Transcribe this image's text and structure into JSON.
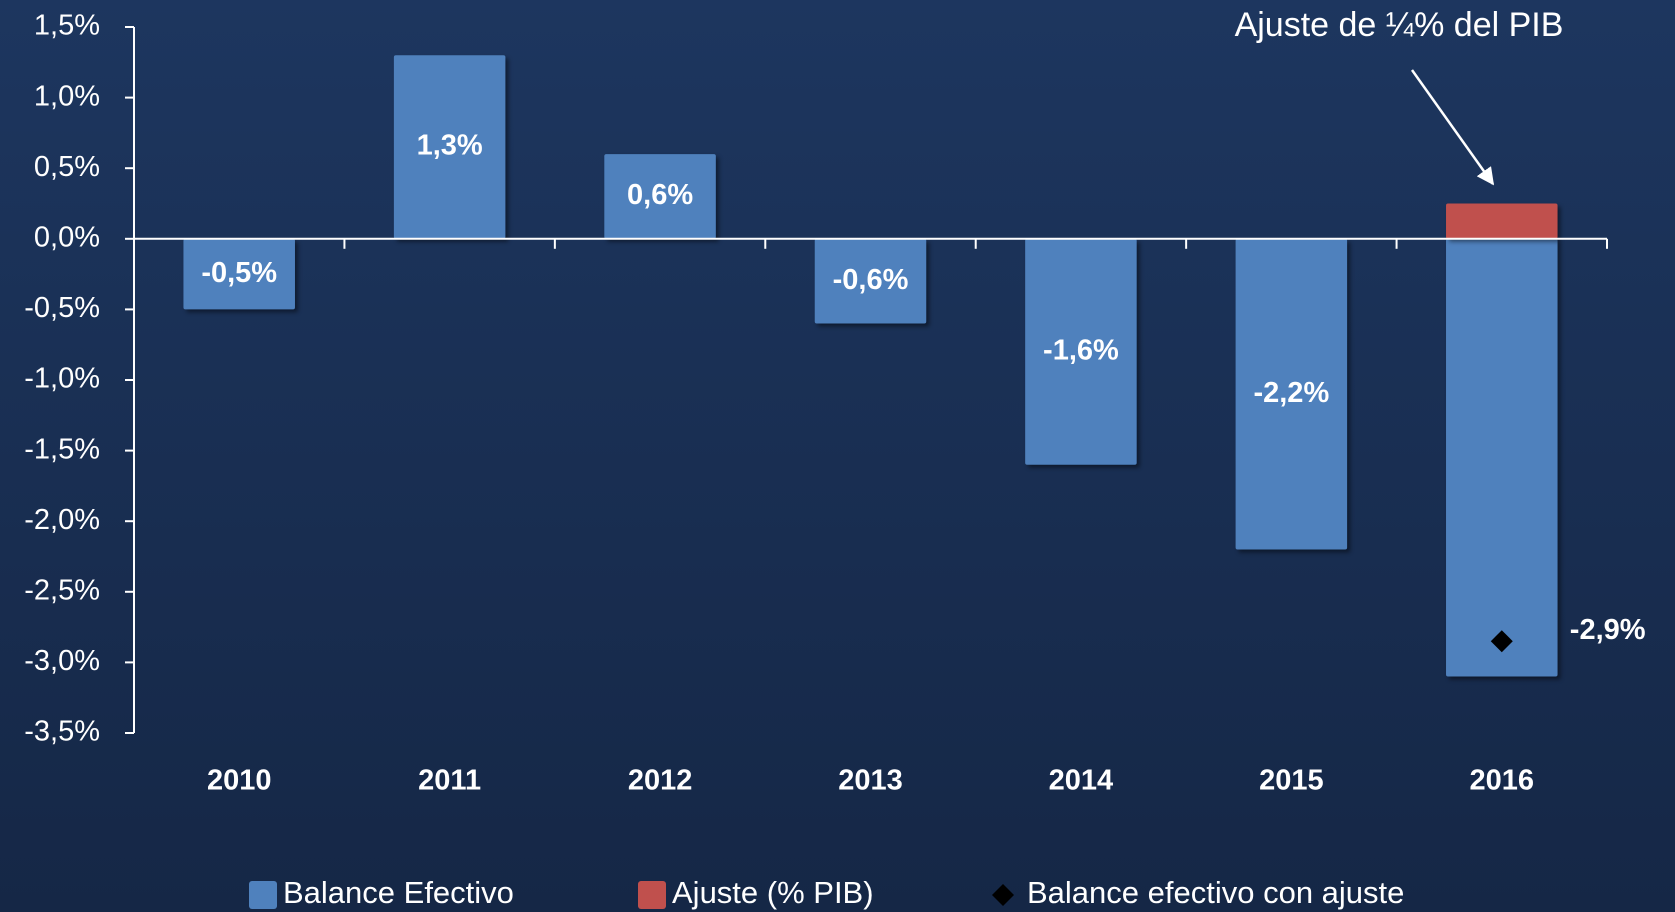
{
  "chart_data": {
    "type": "bar",
    "annotation": "Ajuste de ¼% del PIB",
    "categories": [
      "2010",
      "2011",
      "2012",
      "2013",
      "2014",
      "2015",
      "2016"
    ],
    "series": [
      {
        "name": "Balance Efectivo",
        "color": "#4f81bd",
        "values": [
          -0.5,
          1.3,
          0.6,
          -0.6,
          -1.6,
          -2.2,
          -3.1
        ],
        "value_labels": [
          "-0,5%",
          "1,3%",
          "0,6%",
          "-0,6%",
          "-1,6%",
          "-2,2%",
          null
        ]
      },
      {
        "name": "Ajuste (% PIB)",
        "color": "#c0504d",
        "values": [
          null,
          null,
          null,
          null,
          null,
          null,
          0.25
        ]
      },
      {
        "name": "Balance efectivo con ajuste",
        "color": "#000000",
        "marker": "diamond",
        "values": [
          null,
          null,
          null,
          null,
          null,
          null,
          -2.85
        ],
        "value_labels": [
          null,
          null,
          null,
          null,
          null,
          null,
          "-2,9%"
        ]
      }
    ],
    "ylim": [
      -3.5,
      1.5
    ],
    "yticks": [
      {
        "value": 1.5,
        "label": "1,5%"
      },
      {
        "value": 1.0,
        "label": "1,0%"
      },
      {
        "value": 0.5,
        "label": "0,5%"
      },
      {
        "value": 0.0,
        "label": "0,0%"
      },
      {
        "value": -0.5,
        "label": "-0,5%"
      },
      {
        "value": -1.0,
        "label": "-1,0%"
      },
      {
        "value": -1.5,
        "label": "-1,5%"
      },
      {
        "value": -2.0,
        "label": "-2,0%"
      },
      {
        "value": -2.5,
        "label": "-2,5%"
      },
      {
        "value": -3.0,
        "label": "-3,0%"
      },
      {
        "value": -3.5,
        "label": "-3,5%"
      }
    ],
    "grid": false
  }
}
